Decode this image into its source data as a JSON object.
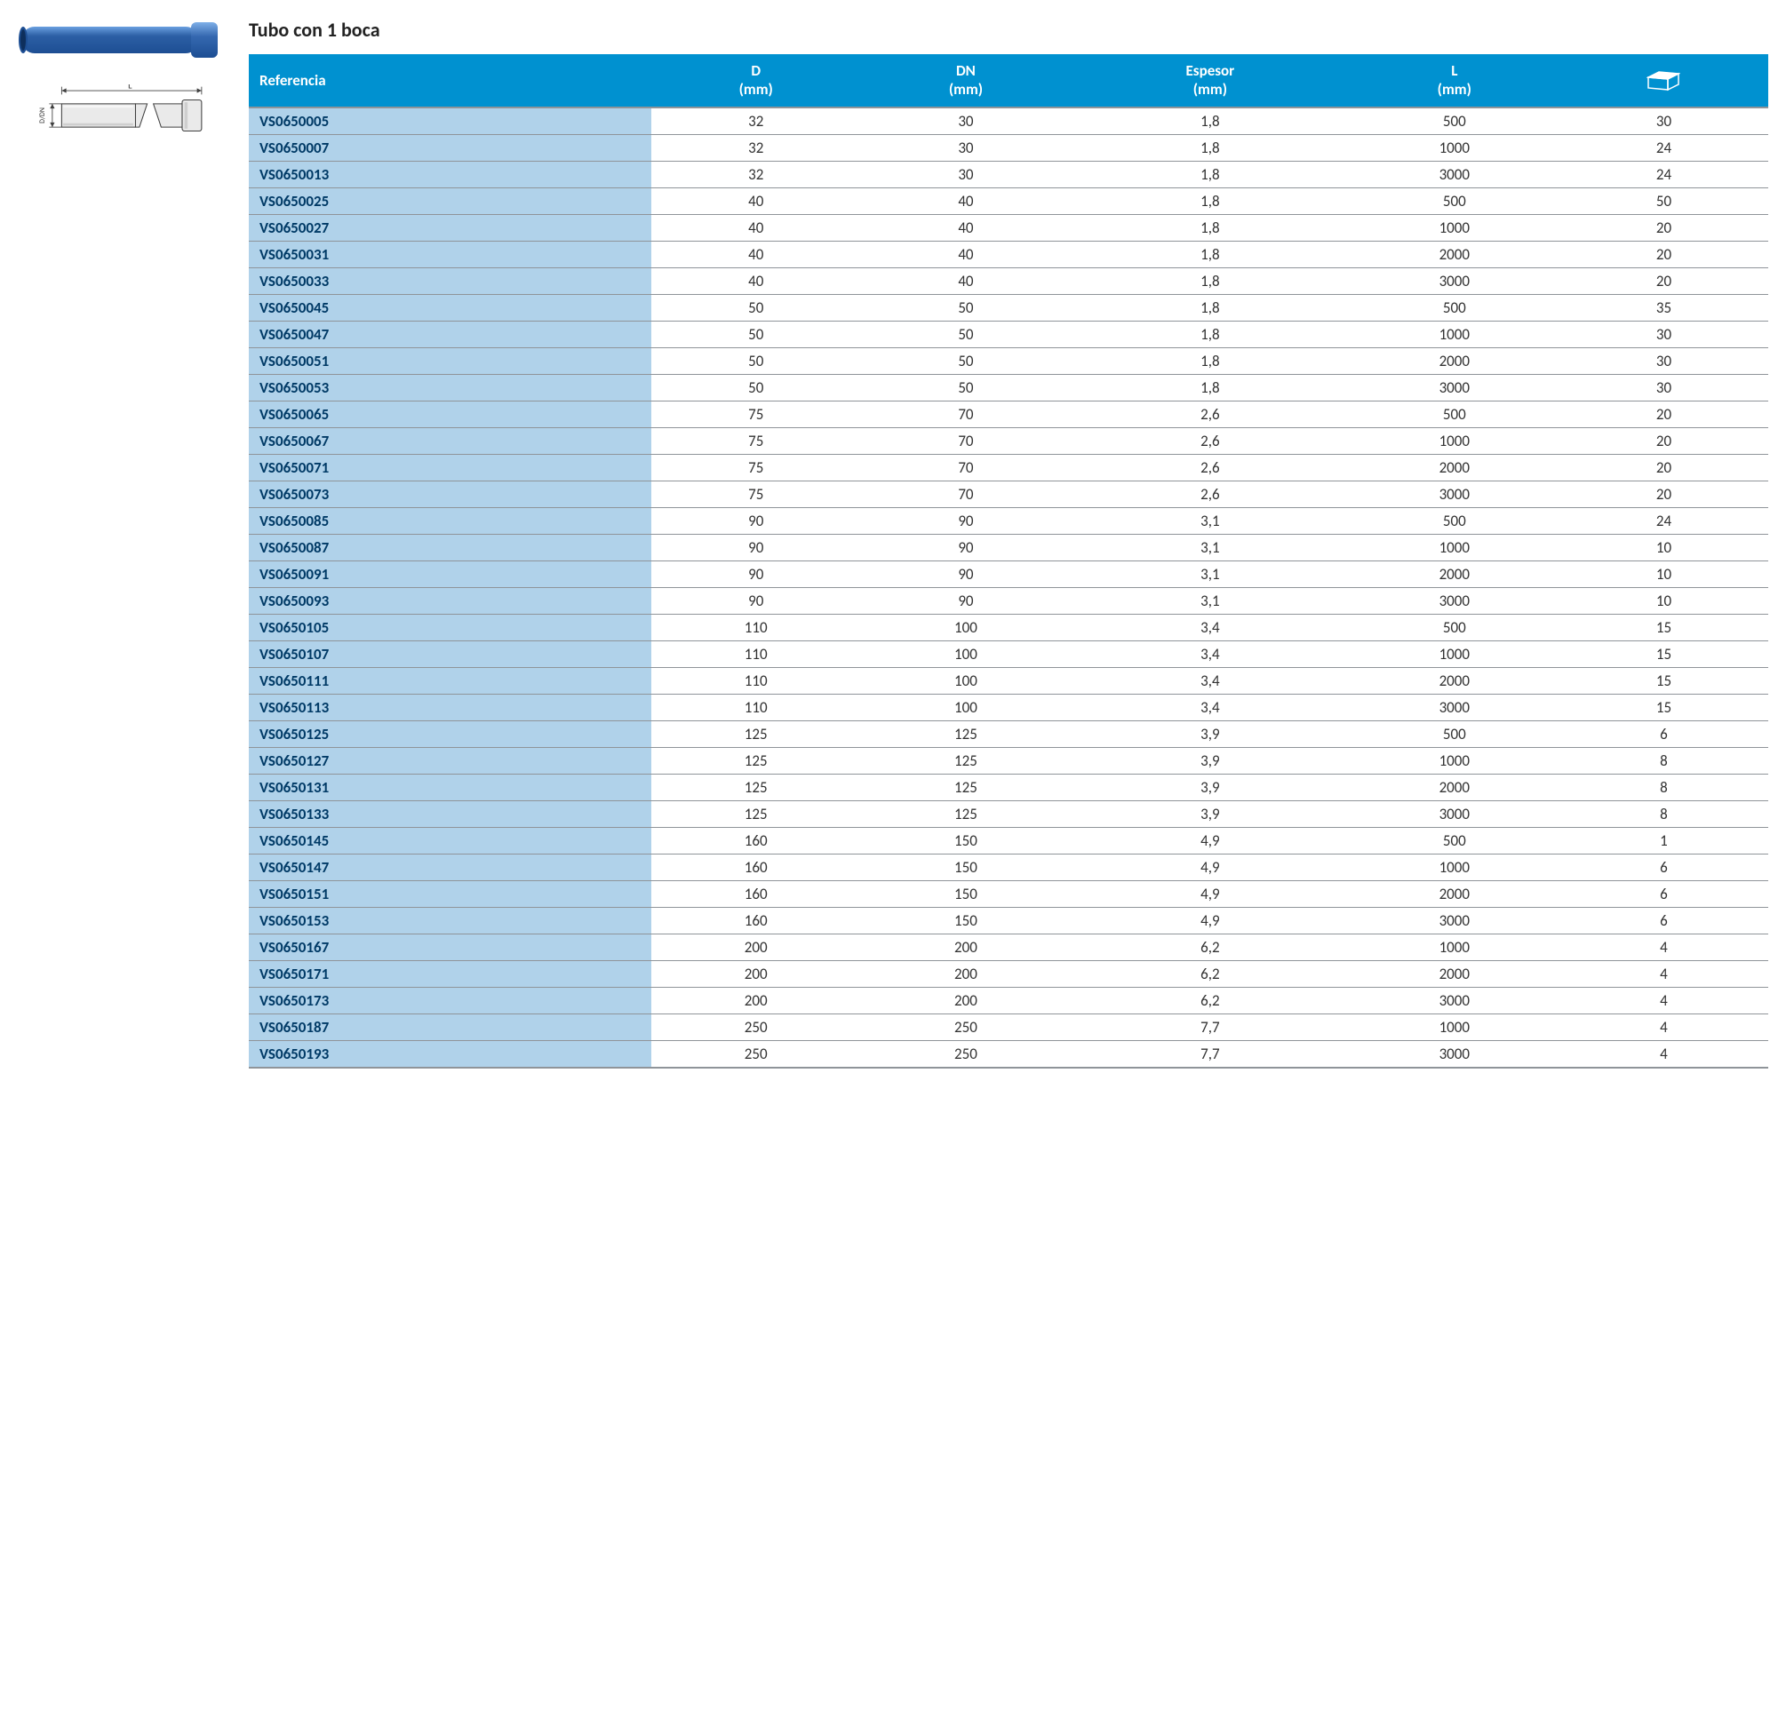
{
  "title": "Tubo con 1 boca",
  "diagram_labels": {
    "L": "L",
    "DDN": "D/DN"
  },
  "colors": {
    "header_bg": "#0091d0",
    "header_text": "#ffffff",
    "ref_bg": "#b0d2ea",
    "ref_text": "#003a66",
    "row_border": "#8f9499",
    "pipe_blue": "#2c5fa5",
    "pipe_blue_dark": "#1d4e93",
    "diagram_stroke": "#404040",
    "diagram_fill": "#e8e8e8"
  },
  "table": {
    "columns": [
      {
        "label_top": "Referencia",
        "label_bottom": ""
      },
      {
        "label_top": "D",
        "label_bottom": "(mm)"
      },
      {
        "label_top": "DN",
        "label_bottom": "(mm)"
      },
      {
        "label_top": "Espesor",
        "label_bottom": "(mm)"
      },
      {
        "label_top": "L",
        "label_bottom": "(mm)"
      },
      {
        "label_top": "__BOX__",
        "label_bottom": ""
      }
    ],
    "rows": [
      [
        "VS0650005",
        "32",
        "30",
        "1,8",
        "500",
        "30"
      ],
      [
        "VS0650007",
        "32",
        "30",
        "1,8",
        "1000",
        "24"
      ],
      [
        "VS0650013",
        "32",
        "30",
        "1,8",
        "3000",
        "24"
      ],
      [
        "VS0650025",
        "40",
        "40",
        "1,8",
        "500",
        "50"
      ],
      [
        "VS0650027",
        "40",
        "40",
        "1,8",
        "1000",
        "20"
      ],
      [
        "VS0650031",
        "40",
        "40",
        "1,8",
        "2000",
        "20"
      ],
      [
        "VS0650033",
        "40",
        "40",
        "1,8",
        "3000",
        "20"
      ],
      [
        "VS0650045",
        "50",
        "50",
        "1,8",
        "500",
        "35"
      ],
      [
        "VS0650047",
        "50",
        "50",
        "1,8",
        "1000",
        "30"
      ],
      [
        "VS0650051",
        "50",
        "50",
        "1,8",
        "2000",
        "30"
      ],
      [
        "VS0650053",
        "50",
        "50",
        "1,8",
        "3000",
        "30"
      ],
      [
        "VS0650065",
        "75",
        "70",
        "2,6",
        "500",
        "20"
      ],
      [
        "VS0650067",
        "75",
        "70",
        "2,6",
        "1000",
        "20"
      ],
      [
        "VS0650071",
        "75",
        "70",
        "2,6",
        "2000",
        "20"
      ],
      [
        "VS0650073",
        "75",
        "70",
        "2,6",
        "3000",
        "20"
      ],
      [
        "VS0650085",
        "90",
        "90",
        "3,1",
        "500",
        "24"
      ],
      [
        "VS0650087",
        "90",
        "90",
        "3,1",
        "1000",
        "10"
      ],
      [
        "VS0650091",
        "90",
        "90",
        "3,1",
        "2000",
        "10"
      ],
      [
        "VS0650093",
        "90",
        "90",
        "3,1",
        "3000",
        "10"
      ],
      [
        "VS0650105",
        "110",
        "100",
        "3,4",
        "500",
        "15"
      ],
      [
        "VS0650107",
        "110",
        "100",
        "3,4",
        "1000",
        "15"
      ],
      [
        "VS0650111",
        "110",
        "100",
        "3,4",
        "2000",
        "15"
      ],
      [
        "VS0650113",
        "110",
        "100",
        "3,4",
        "3000",
        "15"
      ],
      [
        "VS0650125",
        "125",
        "125",
        "3,9",
        "500",
        "6"
      ],
      [
        "VS0650127",
        "125",
        "125",
        "3,9",
        "1000",
        "8"
      ],
      [
        "VS0650131",
        "125",
        "125",
        "3,9",
        "2000",
        "8"
      ],
      [
        "VS0650133",
        "125",
        "125",
        "3,9",
        "3000",
        "8"
      ],
      [
        "VS0650145",
        "160",
        "150",
        "4,9",
        "500",
        "1"
      ],
      [
        "VS0650147",
        "160",
        "150",
        "4,9",
        "1000",
        "6"
      ],
      [
        "VS0650151",
        "160",
        "150",
        "4,9",
        "2000",
        "6"
      ],
      [
        "VS0650153",
        "160",
        "150",
        "4,9",
        "3000",
        "6"
      ],
      [
        "VS0650167",
        "200",
        "200",
        "6,2",
        "1000",
        "4"
      ],
      [
        "VS0650171",
        "200",
        "200",
        "6,2",
        "2000",
        "4"
      ],
      [
        "VS0650173",
        "200",
        "200",
        "6,2",
        "3000",
        "4"
      ],
      [
        "VS0650187",
        "250",
        "250",
        "7,7",
        "1000",
        "4"
      ],
      [
        "VS0650193",
        "250",
        "250",
        "7,7",
        "3000",
        "4"
      ]
    ]
  }
}
